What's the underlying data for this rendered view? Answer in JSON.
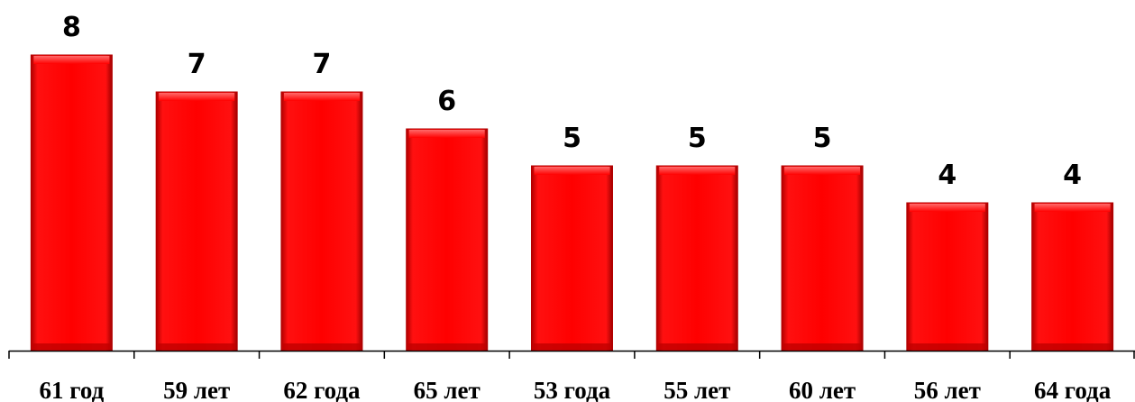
{
  "chart_data": {
    "type": "bar",
    "categories": [
      "61 год",
      "59 лет",
      "62 года",
      "65 лет",
      "53 года",
      "55 лет",
      "60 лет",
      "56 лет",
      "64 года"
    ],
    "values": [
      8,
      7,
      7,
      6,
      5,
      5,
      5,
      4,
      4
    ],
    "data_labels": [
      "8",
      "7",
      "7",
      "6",
      "5",
      "5",
      "5",
      "4",
      "4"
    ],
    "ylim": [
      0,
      8
    ],
    "grid": false,
    "legend": "none",
    "bar_color": "#ff0000",
    "bar_edge_color": "#b30000"
  }
}
